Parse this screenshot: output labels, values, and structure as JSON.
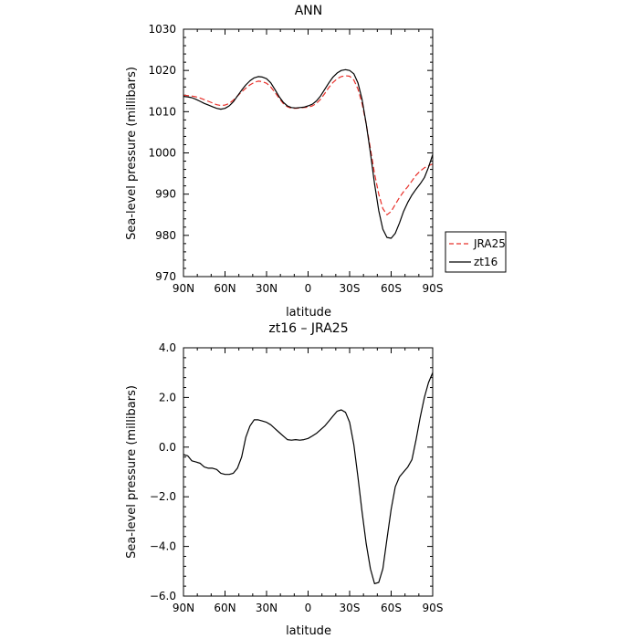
{
  "chart_data": [
    {
      "type": "line",
      "title": "ANN",
      "xlabel": "latitude",
      "ylabel": "Sea-level pressure (millibars)",
      "x_tick_labels": [
        "90N",
        "60N",
        "30N",
        "0",
        "30S",
        "60S",
        "90S"
      ],
      "x_tick_values": [
        90,
        60,
        30,
        0,
        -30,
        -60,
        -90
      ],
      "xlim": [
        90,
        -90
      ],
      "ylim": [
        970,
        1030
      ],
      "y_tick_values": [
        970,
        980,
        990,
        1000,
        1010,
        1020,
        1030
      ],
      "y_tick_labels": [
        "970",
        "980",
        "990",
        "1000",
        "1010",
        "1020",
        "1030"
      ],
      "legend_position": "right",
      "grid": false,
      "series": [
        {
          "name": "JRA25",
          "color": "#e8302a",
          "dash": "dashed",
          "x": [
            90,
            87,
            84,
            81,
            78,
            75,
            72,
            69,
            66,
            63,
            60,
            57,
            54,
            51,
            48,
            45,
            42,
            39,
            36,
            33,
            30,
            27,
            24,
            21,
            18,
            15,
            12,
            9,
            6,
            3,
            0,
            -3,
            -6,
            -9,
            -12,
            -15,
            -18,
            -21,
            -24,
            -27,
            -30,
            -33,
            -36,
            -39,
            -42,
            -45,
            -48,
            -51,
            -54,
            -57,
            -60,
            -63,
            -66,
            -69,
            -72,
            -75,
            -78,
            -81,
            -84,
            -87,
            -90
          ],
          "values": [
            1014,
            1013.9,
            1013.8,
            1013.6,
            1013.3,
            1012.9,
            1012.5,
            1012.1,
            1011.7,
            1011.5,
            1011.6,
            1012.0,
            1012.8,
            1013.8,
            1014.8,
            1015.7,
            1016.5,
            1017.1,
            1017.4,
            1017.3,
            1016.9,
            1016.0,
            1014.7,
            1013.3,
            1012.0,
            1011.2,
            1010.8,
            1010.8,
            1010.9,
            1011.0,
            1011.1,
            1011.4,
            1012.0,
            1013.0,
            1014.4,
            1015.9,
            1017.1,
            1018.0,
            1018.5,
            1018.7,
            1018.6,
            1017.7,
            1015.5,
            1012.0,
            1007.0,
            1001.0,
            995.0,
            990.0,
            986.5,
            985.0,
            985.8,
            987.5,
            989.2,
            990.6,
            991.8,
            993.2,
            994.6,
            995.6,
            996.4,
            996.9,
            997.3
          ]
        },
        {
          "name": "zt16",
          "color": "#000000",
          "dash": "solid",
          "x": [
            90,
            87,
            84,
            81,
            78,
            75,
            72,
            69,
            66,
            63,
            60,
            57,
            54,
            51,
            48,
            45,
            42,
            39,
            36,
            33,
            30,
            27,
            24,
            21,
            18,
            15,
            12,
            9,
            6,
            3,
            0,
            -3,
            -6,
            -9,
            -12,
            -15,
            -18,
            -21,
            -24,
            -27,
            -30,
            -33,
            -36,
            -39,
            -42,
            -45,
            -48,
            -51,
            -54,
            -57,
            -60,
            -63,
            -66,
            -69,
            -72,
            -75,
            -78,
            -81,
            -84,
            -87,
            -90
          ],
          "values": [
            1013.7,
            1013.6,
            1013.4,
            1013.0,
            1012.5,
            1012.0,
            1011.6,
            1011.2,
            1010.8,
            1010.6,
            1010.8,
            1011.4,
            1012.4,
            1013.8,
            1015.2,
            1016.5,
            1017.5,
            1018.2,
            1018.5,
            1018.4,
            1018.0,
            1017.0,
            1015.4,
            1013.7,
            1012.3,
            1011.4,
            1011.0,
            1010.9,
            1011.0,
            1011.1,
            1011.4,
            1011.8,
            1012.6,
            1013.8,
            1015.4,
            1017.0,
            1018.4,
            1019.4,
            1020.0,
            1020.2,
            1020.0,
            1019.2,
            1017.0,
            1013.0,
            1007.0,
            1000.0,
            992.5,
            986.0,
            981.5,
            979.5,
            979.3,
            980.5,
            983.0,
            985.8,
            988.0,
            989.8,
            991.2,
            992.5,
            994.0,
            996.5,
            999.6
          ]
        }
      ]
    },
    {
      "type": "line",
      "title": "zt16 – JRA25",
      "xlabel": "latitude",
      "ylabel": "Sea-level pressure (millibars)",
      "x_tick_labels": [
        "90N",
        "60N",
        "30N",
        "0",
        "30S",
        "60S",
        "90S"
      ],
      "x_tick_values": [
        90,
        60,
        30,
        0,
        -30,
        -60,
        -90
      ],
      "xlim": [
        90,
        -90
      ],
      "ylim": [
        -6,
        4
      ],
      "y_tick_values": [
        -6,
        -4,
        -2,
        0,
        2,
        4
      ],
      "y_tick_labels": [
        "−6.0",
        "−4.0",
        "−2.0",
        "0.0",
        "2.0",
        "4.0"
      ],
      "grid": false,
      "series": [
        {
          "color": "#000000",
          "dash": "solid",
          "x": [
            90,
            87,
            84,
            81,
            78,
            75,
            72,
            69,
            66,
            63,
            60,
            57,
            54,
            51,
            48,
            45,
            42,
            39,
            36,
            33,
            30,
            27,
            24,
            21,
            18,
            15,
            12,
            9,
            6,
            3,
            0,
            -3,
            -6,
            -9,
            -12,
            -15,
            -18,
            -21,
            -24,
            -27,
            -30,
            -33,
            -36,
            -39,
            -42,
            -45,
            -48,
            -51,
            -54,
            -57,
            -60,
            -63,
            -66,
            -69,
            -72,
            -75,
            -78,
            -81,
            -84,
            -87,
            -90
          ],
          "values": [
            -0.3,
            -0.35,
            -0.55,
            -0.6,
            -0.65,
            -0.8,
            -0.85,
            -0.85,
            -0.9,
            -1.05,
            -1.1,
            -1.1,
            -1.05,
            -0.85,
            -0.4,
            0.4,
            0.85,
            1.1,
            1.1,
            1.05,
            1.0,
            0.9,
            0.75,
            0.6,
            0.45,
            0.3,
            0.28,
            0.3,
            0.28,
            0.3,
            0.35,
            0.45,
            0.55,
            0.7,
            0.85,
            1.05,
            1.25,
            1.45,
            1.5,
            1.4,
            1.0,
            0.1,
            -1.2,
            -2.6,
            -3.9,
            -4.9,
            -5.5,
            -5.45,
            -4.9,
            -3.7,
            -2.5,
            -1.6,
            -1.2,
            -1.0,
            -0.8,
            -0.5,
            0.3,
            1.2,
            2.0,
            2.6,
            3.0
          ]
        }
      ]
    }
  ]
}
